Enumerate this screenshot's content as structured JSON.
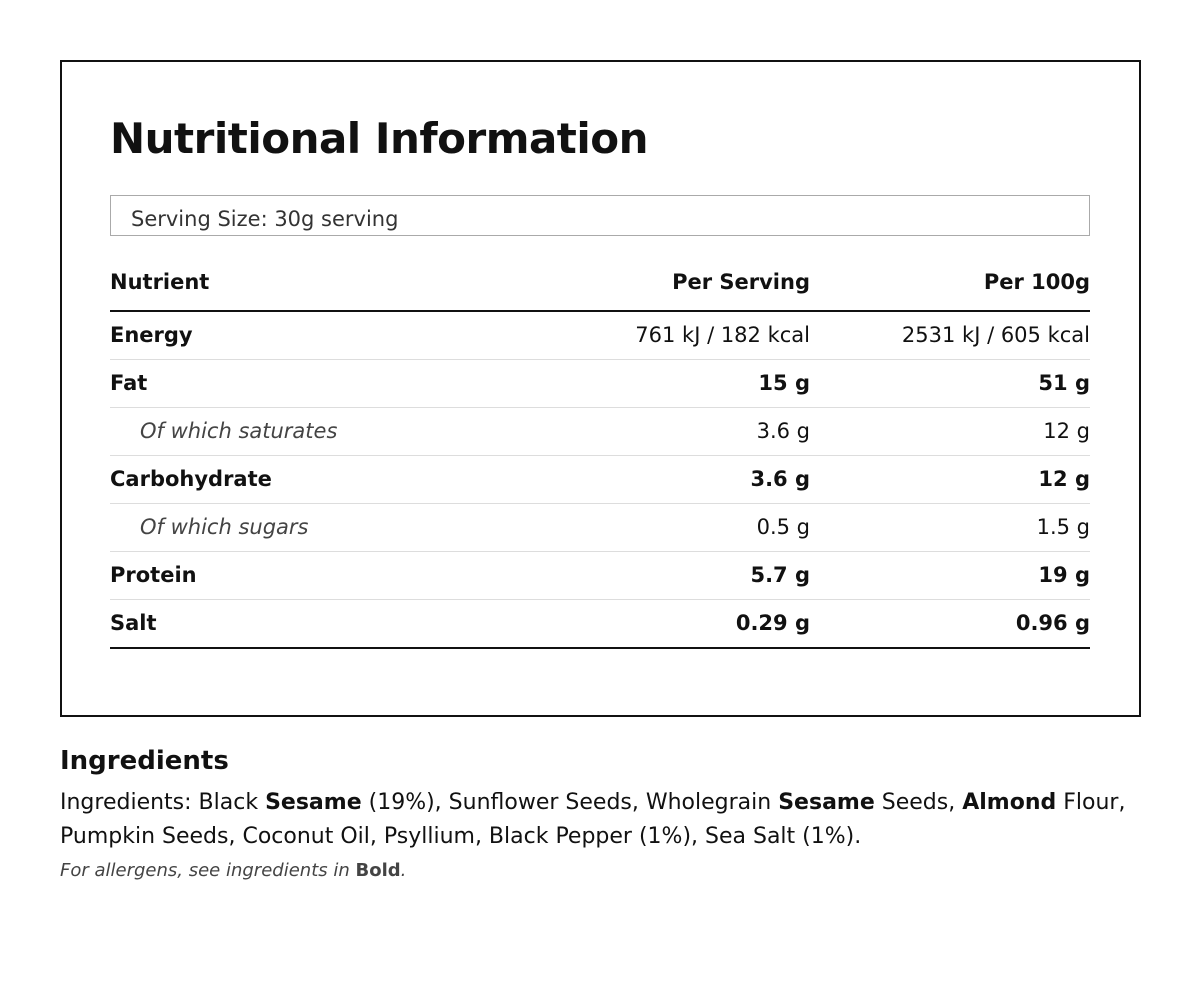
{
  "panel": {
    "title": "Nutritional Information",
    "serving_size": "Serving Size: 30g serving",
    "table": {
      "header": [
        "Nutrient",
        "Per Serving",
        "Per 100g"
      ],
      "rows": [
        {
          "cells": [
            "Energy",
            "761 kJ / 182 kcal",
            "2531 kJ / 605 kcal"
          ],
          "style": "energy"
        },
        {
          "cells": [
            "Fat",
            "15 g",
            "51 g"
          ],
          "style": "bold"
        },
        {
          "cells": [
            "Of which saturates",
            "3.6 g",
            "12 g"
          ],
          "style": "sub"
        },
        {
          "cells": [
            "Carbohydrate",
            "3.6 g",
            "12 g"
          ],
          "style": "bold"
        },
        {
          "cells": [
            "Of which sugars",
            "0.5 g",
            "1.5 g"
          ],
          "style": "sub"
        },
        {
          "cells": [
            "Protein",
            "5.7 g",
            "19 g"
          ],
          "style": "bold"
        },
        {
          "cells": [
            "Salt",
            "0.29 g",
            "0.96 g"
          ],
          "style": "bold"
        }
      ]
    }
  },
  "ingredients": {
    "heading": "Ingredients",
    "text": [
      {
        "text": "Ingredients: Black ",
        "bold": false
      },
      {
        "text": "Sesame",
        "bold": true
      },
      {
        "text": " (19%), Sunflower Seeds, Wholegrain ",
        "bold": false
      },
      {
        "text": "Sesame",
        "bold": true
      },
      {
        "text": " Seeds, ",
        "bold": false
      },
      {
        "text": "Almond",
        "bold": true
      },
      {
        "text": " Flour, Pumpkin Seeds, Coconut Oil, Psyllium, Black Pepper (1%), Sea Salt (1%).",
        "bold": false
      }
    ],
    "note": [
      {
        "text": "For allergens, see ingredients in ",
        "bold": false
      },
      {
        "text": "Bold",
        "bold": true
      },
      {
        "text": ".",
        "bold": false
      }
    ]
  }
}
